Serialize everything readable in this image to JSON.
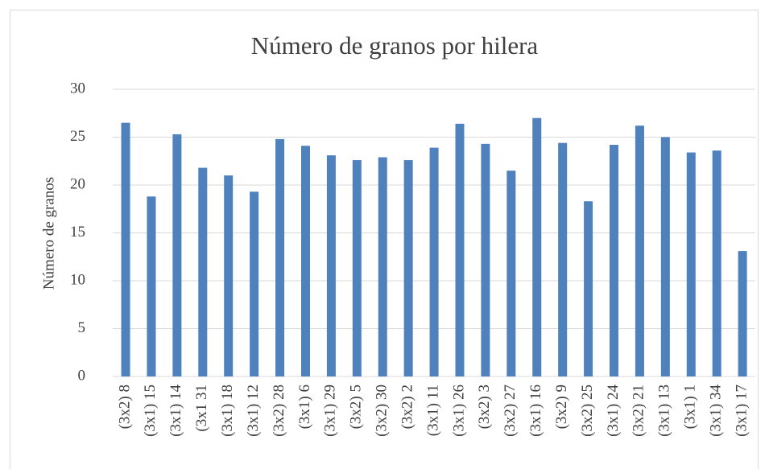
{
  "chart_data": {
    "type": "bar",
    "title": "Número de granos por hilera",
    "y_label": "Número de granos",
    "categories": [
      "(3x2) 8",
      "(3x1) 15",
      "(3x1) 14",
      "(3x1 31",
      "(3x1) 18",
      "(3x1) 12",
      "(3x2) 28",
      "(3x1) 6",
      "(3x1) 29",
      "(3x2) 5",
      "(3x2) 30",
      "(3x2) 2",
      "(3x1) 11",
      "(3x1) 26",
      "(3x2) 3",
      "(3x2) 27",
      "(3x1) 16",
      "(3x2) 9",
      "(3x2) 25",
      "(3x1) 24",
      "(3x2) 21",
      "(3x1) 13",
      "(3x1) 1",
      "(3x1) 34",
      "(3x1) 17"
    ],
    "values": [
      26.5,
      18.8,
      25.3,
      21.8,
      21.0,
      19.3,
      24.8,
      24.1,
      23.1,
      22.6,
      22.9,
      22.6,
      23.9,
      26.4,
      24.3,
      21.5,
      27.0,
      24.4,
      18.3,
      24.2,
      26.2,
      25.0,
      23.4,
      23.6,
      13.1
    ],
    "color": "#4f81bd",
    "ylim": [
      0,
      30
    ],
    "yticks": [
      0,
      5,
      10,
      15,
      20,
      25,
      30
    ],
    "grid": true
  }
}
